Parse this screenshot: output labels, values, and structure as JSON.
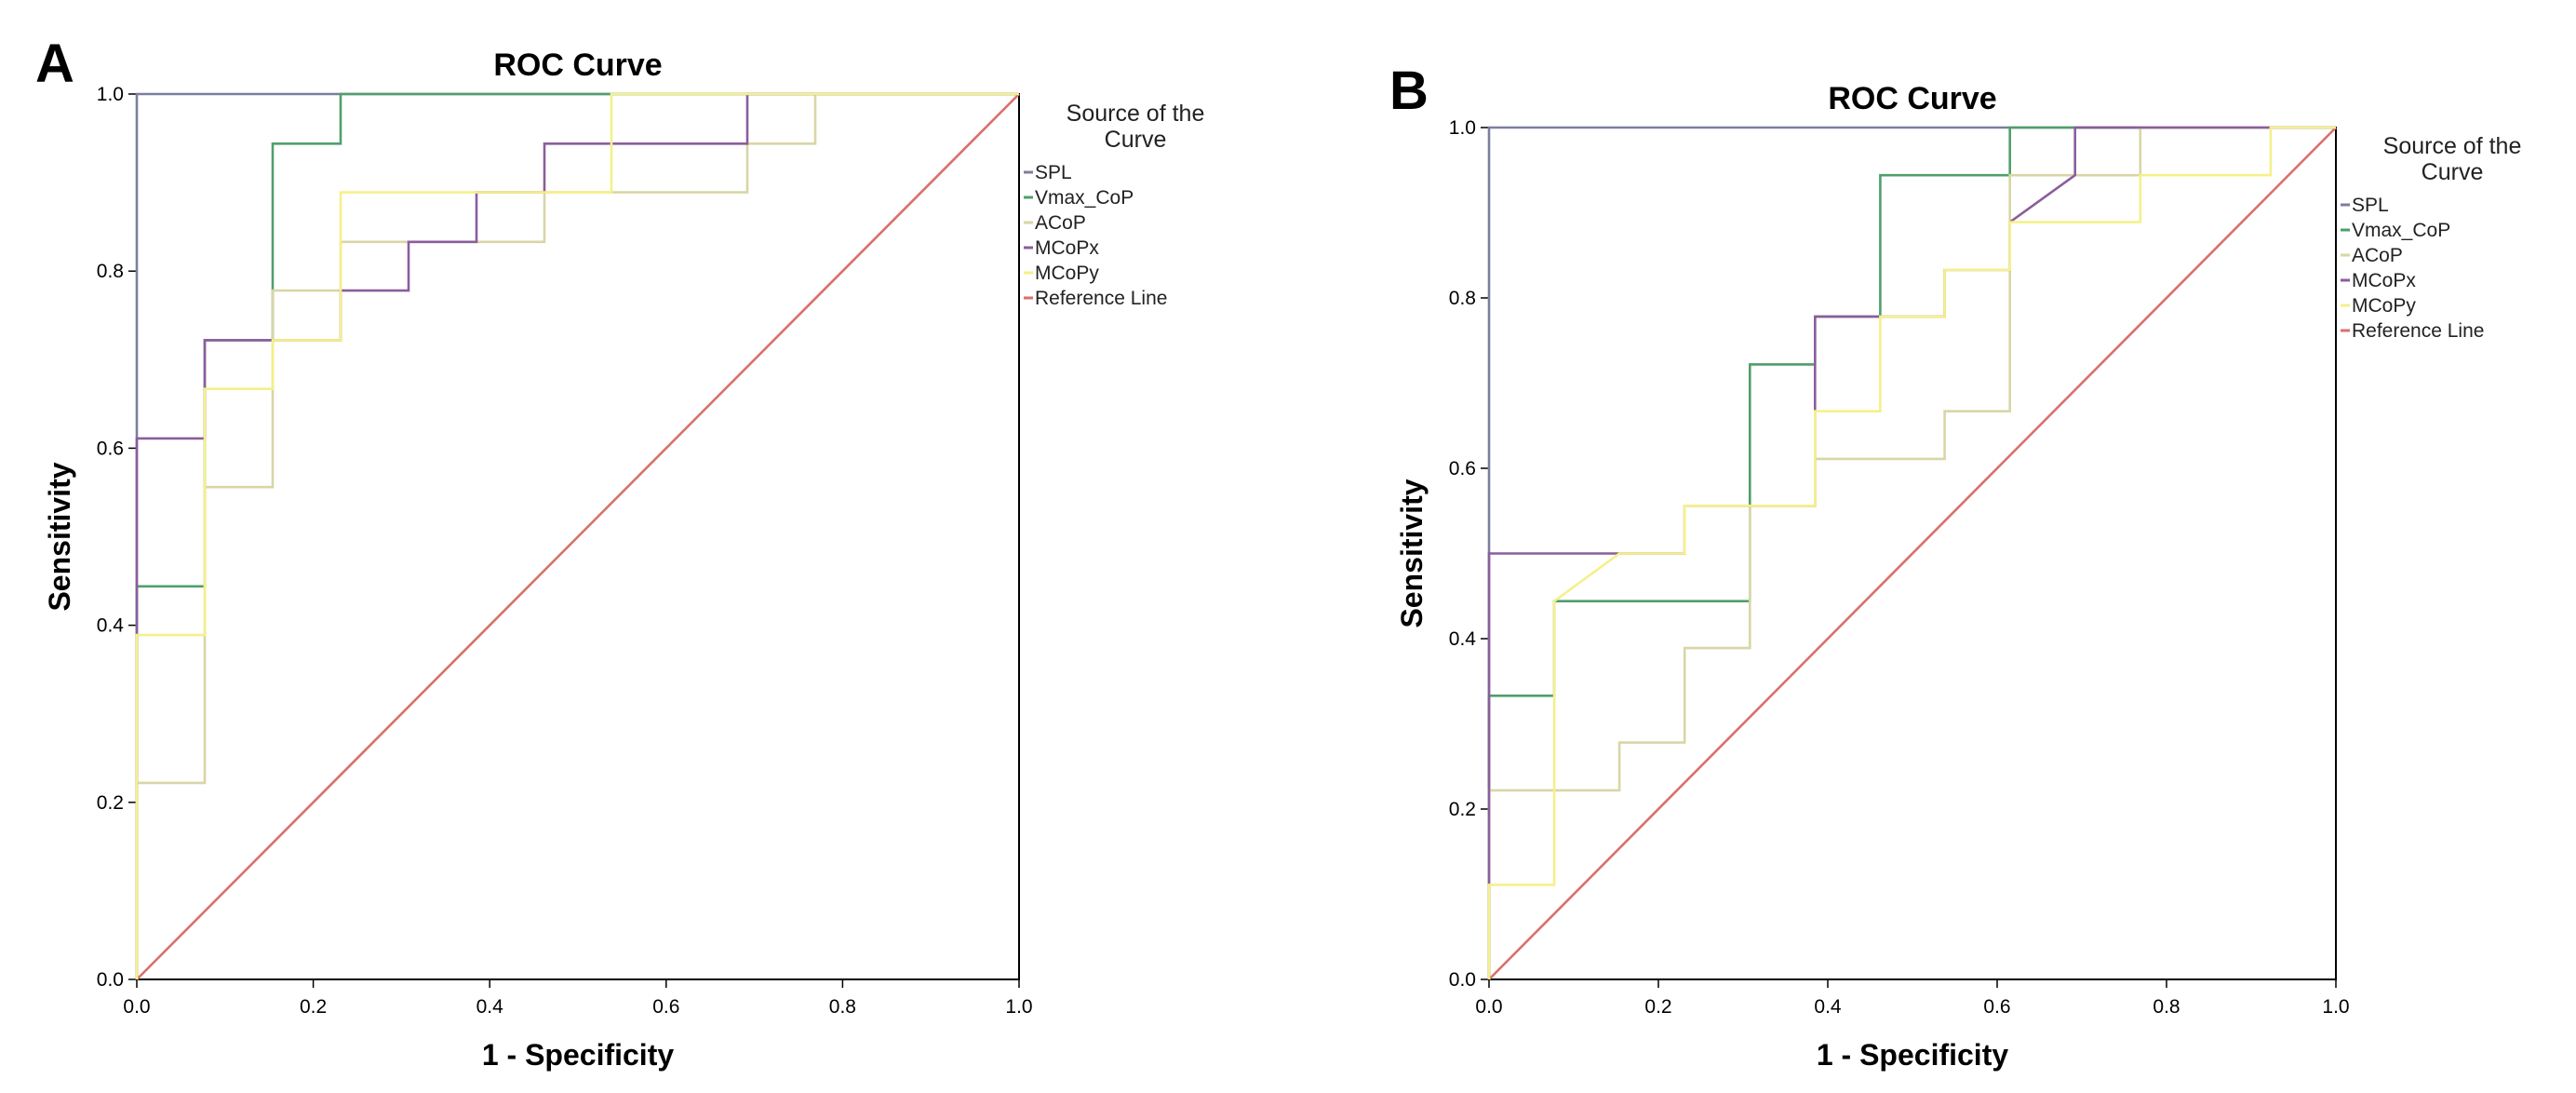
{
  "chart_data": [
    {
      "panel": "A",
      "type": "line",
      "title": "ROC Curve",
      "xlabel": "1 - Specificity",
      "ylabel": "Sensitivity",
      "xlim": [
        0,
        1
      ],
      "ylim": [
        0,
        1
      ],
      "xticks": [
        "0.0",
        "0.2",
        "0.4",
        "0.6",
        "0.8",
        "1.0"
      ],
      "yticks": [
        "0.0",
        "0.2",
        "0.4",
        "0.6",
        "0.8",
        "1.0"
      ],
      "grid": false,
      "legend": {
        "title": "Source of the Curve",
        "placement": "right-top",
        "entries": [
          "SPL",
          "Vmax_CoP",
          "ACoP",
          "MCoPx",
          "MCoPy",
          "Reference Line"
        ]
      },
      "series": [
        {
          "name": "SPL",
          "color": "#7b7f9e",
          "x": [
            0,
            0,
            1
          ],
          "y": [
            0,
            1,
            1
          ]
        },
        {
          "name": "Vmax_CoP",
          "color": "#4f9f6b",
          "x": [
            0,
            0,
            0.077,
            0.077,
            0.154,
            0.154,
            0.231,
            0.231,
            1
          ],
          "y": [
            0,
            0.444,
            0.444,
            0.722,
            0.722,
            0.944,
            0.944,
            1,
            1
          ]
        },
        {
          "name": "ACoP",
          "color": "#d8d6a6",
          "x": [
            0,
            0,
            0.077,
            0.077,
            0.154,
            0.154,
            0.231,
            0.231,
            0.462,
            0.462,
            0.692,
            0.692,
            0.769,
            0.769,
            1
          ],
          "y": [
            0,
            0.222,
            0.222,
            0.556,
            0.556,
            0.778,
            0.778,
            0.833,
            0.833,
            0.889,
            0.889,
            0.944,
            0.944,
            1,
            1
          ]
        },
        {
          "name": "MCoPx",
          "color": "#8b5d9c",
          "x": [
            0,
            0,
            0.077,
            0.077,
            0.231,
            0.231,
            0.308,
            0.308,
            0.385,
            0.385,
            0.462,
            0.462,
            0.692,
            0.692,
            1
          ],
          "y": [
            0,
            0.611,
            0.611,
            0.722,
            0.722,
            0.778,
            0.778,
            0.833,
            0.833,
            0.889,
            0.889,
            0.944,
            0.944,
            1,
            1
          ]
        },
        {
          "name": "MCoPy",
          "color": "#f5f08a",
          "x": [
            0,
            0,
            0.077,
            0.077,
            0.154,
            0.154,
            0.231,
            0.231,
            0.538,
            0.538,
            1
          ],
          "y": [
            0,
            0.389,
            0.389,
            0.667,
            0.667,
            0.722,
            0.722,
            0.889,
            0.889,
            1,
            1
          ]
        },
        {
          "name": "Reference Line",
          "color": "#d9706c",
          "x": [
            0,
            1
          ],
          "y": [
            0,
            1
          ]
        }
      ]
    },
    {
      "panel": "B",
      "type": "line",
      "title": "ROC Curve",
      "xlabel": "1 - Specificity",
      "ylabel": "Sensitivity",
      "xlim": [
        0,
        1
      ],
      "ylim": [
        0,
        1
      ],
      "xticks": [
        "0.0",
        "0.2",
        "0.4",
        "0.6",
        "0.8",
        "1.0"
      ],
      "yticks": [
        "0.0",
        "0.2",
        "0.4",
        "0.6",
        "0.8",
        "1.0"
      ],
      "grid": false,
      "legend": {
        "title": "Source of the Curve",
        "placement": "right-top",
        "entries": [
          "SPL",
          "Vmax_CoP",
          "ACoP",
          "MCoPx",
          "MCoPy",
          "Reference Line"
        ]
      },
      "series": [
        {
          "name": "SPL",
          "color": "#7b7f9e",
          "x": [
            0,
            0,
            1
          ],
          "y": [
            0,
            1,
            1
          ]
        },
        {
          "name": "Vmax_CoP",
          "color": "#4f9f6b",
          "x": [
            0,
            0,
            0.077,
            0.077,
            0.308,
            0.308,
            0.385,
            0.385,
            0.462,
            0.462,
            0.615,
            0.615,
            1
          ],
          "y": [
            0,
            0.333,
            0.333,
            0.444,
            0.444,
            0.722,
            0.722,
            0.778,
            0.778,
            0.944,
            0.944,
            1,
            1
          ]
        },
        {
          "name": "ACoP",
          "color": "#d8d6a6",
          "x": [
            0,
            0,
            0.154,
            0.154,
            0.231,
            0.231,
            0.308,
            0.308,
            0.385,
            0.385,
            0.538,
            0.538,
            0.615,
            0.615,
            0.769,
            0.769,
            1
          ],
          "y": [
            0,
            0.222,
            0.222,
            0.278,
            0.278,
            0.389,
            0.389,
            0.556,
            0.556,
            0.611,
            0.611,
            0.667,
            0.667,
            0.944,
            0.944,
            1,
            1
          ]
        },
        {
          "name": "MCoPx",
          "color": "#8b5d9c",
          "x": [
            0,
            0,
            0.154,
            0.154,
            0.231,
            0.231,
            0.385,
            0.385,
            0.538,
            0.538,
            0.615,
            0.615,
            0.692,
            0.692,
            1
          ],
          "y": [
            0,
            0.5,
            0.5,
            0.5,
            0.5,
            0.556,
            0.556,
            0.778,
            0.778,
            0.833,
            0.833,
            0.889,
            0.944,
            1,
            1
          ]
        },
        {
          "name": "MCoPy",
          "color": "#f5f08a",
          "x": [
            0,
            0,
            0.077,
            0.077,
            0.154,
            0.154,
            0.231,
            0.231,
            0.385,
            0.385,
            0.462,
            0.462,
            0.538,
            0.538,
            0.615,
            0.615,
            0.769,
            0.769,
            0.923,
            0.923,
            1
          ],
          "y": [
            0,
            0.111,
            0.111,
            0.444,
            0.5,
            0.5,
            0.5,
            0.556,
            0.556,
            0.667,
            0.667,
            0.778,
            0.778,
            0.833,
            0.833,
            0.889,
            0.889,
            0.944,
            0.944,
            1,
            1
          ]
        },
        {
          "name": "Reference Line",
          "color": "#d9706c",
          "x": [
            0,
            1
          ],
          "y": [
            0,
            1
          ]
        }
      ]
    }
  ]
}
